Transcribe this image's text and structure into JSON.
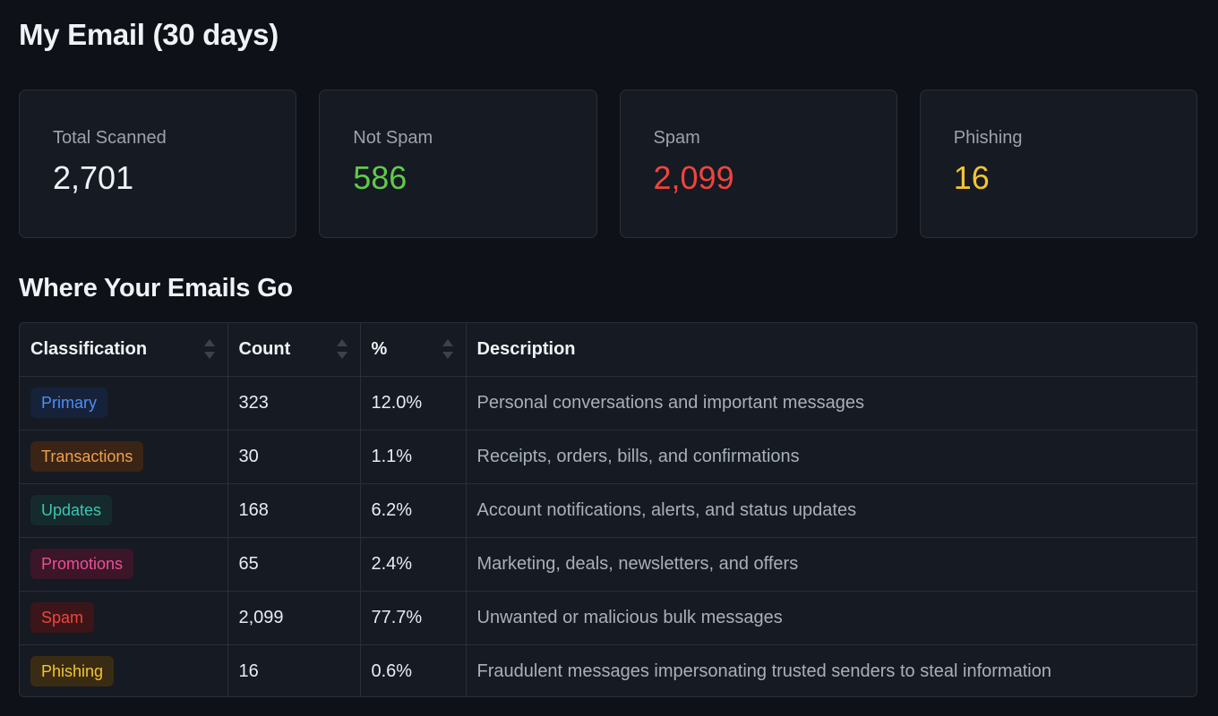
{
  "page": {
    "title": "My Email (30 days)"
  },
  "stats": [
    {
      "label": "Total Scanned",
      "value": "2,701",
      "color": "#f0f3f6"
    },
    {
      "label": "Not Spam",
      "value": "586",
      "color": "#5fcb4a"
    },
    {
      "label": "Spam",
      "value": "2,099",
      "color": "#f0443e"
    },
    {
      "label": "Phishing",
      "value": "16",
      "color": "#f4c431"
    }
  ],
  "section": {
    "title": "Where Your Emails Go"
  },
  "table": {
    "headers": {
      "classification": "Classification",
      "count": "Count",
      "percent": "%",
      "description": "Description"
    },
    "rows": [
      {
        "classification": "Primary",
        "count": "323",
        "percent": "12.0%",
        "description": "Personal conversations and important messages",
        "badge_text": "#4f8df5",
        "badge_bg": "#15223a"
      },
      {
        "classification": "Transactions",
        "count": "30",
        "percent": "1.1%",
        "description": "Receipts, orders, bills, and confirmations",
        "badge_text": "#f0a04b",
        "badge_bg": "#3a2415"
      },
      {
        "classification": "Updates",
        "count": "168",
        "percent": "6.2%",
        "description": "Account notifications, alerts, and status updates",
        "badge_text": "#3cc4b4",
        "badge_bg": "#152a2c"
      },
      {
        "classification": "Promotions",
        "count": "65",
        "percent": "2.4%",
        "description": "Marketing, deals, newsletters, and offers",
        "badge_text": "#ec4f96",
        "badge_bg": "#3a1628"
      },
      {
        "classification": "Spam",
        "count": "2,099",
        "percent": "77.7%",
        "description": "Unwanted or malicious bulk messages",
        "badge_text": "#f0443e",
        "badge_bg": "#3c1518"
      },
      {
        "classification": "Phishing",
        "count": "16",
        "percent": "0.6%",
        "description": "Fraudulent messages impersonating trusted senders to steal information",
        "badge_text": "#f4c431",
        "badge_bg": "#3a2c12"
      }
    ]
  },
  "icons": {
    "sort": "sort-icon"
  }
}
